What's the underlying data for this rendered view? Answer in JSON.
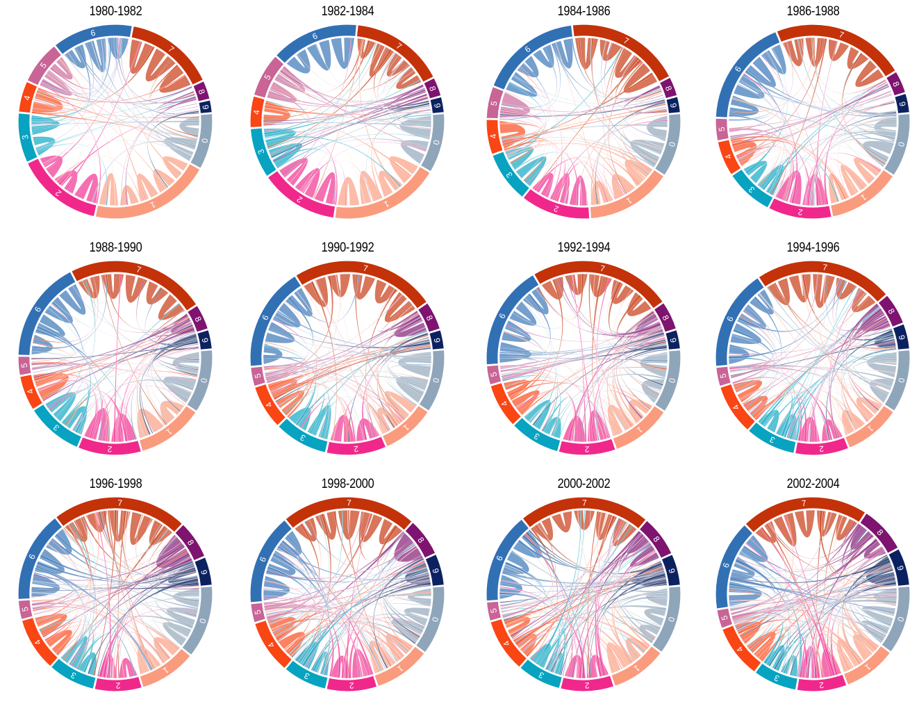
{
  "chart_data": {
    "type": "chord",
    "segment_labels": [
      "0",
      "1",
      "2",
      "3",
      "4",
      "5",
      "6",
      "7",
      "8",
      "9"
    ],
    "colors": {
      "0": "#8FA5BA",
      "1": "#FA9B7E",
      "2": "#F0288C",
      "3": "#07A3C1",
      "4": "#FA4514",
      "5": "#C86496",
      "6": "#3270B4",
      "7": "#C4320A",
      "8": "#7E1370",
      "9": "#0C2260"
    },
    "charts": [
      {
        "title": "1980-1982",
        "sizes": [
          9.0,
          19.5,
          14.0,
          8.0,
          5.0,
          7.0,
          13.0,
          14.5,
          3.0,
          2.0
        ]
      },
      {
        "title": "1982-1984",
        "sizes": [
          9.5,
          17.5,
          12.5,
          8.0,
          5.0,
          7.0,
          14.0,
          15.0,
          3.0,
          2.5
        ]
      },
      {
        "title": "1984-1986",
        "sizes": [
          10.0,
          13.5,
          11.0,
          8.0,
          5.5,
          5.0,
          16.0,
          18.0,
          3.0,
          2.5
        ]
      },
      {
        "title": "1986-1988",
        "sizes": [
          10.0,
          11.5,
          10.0,
          7.5,
          5.5,
          3.5,
          17.0,
          21.0,
          3.5,
          3.0
        ]
      },
      {
        "title": "1988-1990",
        "sizes": [
          10.0,
          10.5,
          10.0,
          9.0,
          5.5,
          3.0,
          16.0,
          22.0,
          4.0,
          3.0
        ]
      },
      {
        "title": "1990-1992",
        "sizes": [
          10.0,
          8.5,
          9.5,
          8.5,
          7.0,
          3.0,
          16.5,
          23.0,
          4.5,
          3.0
        ]
      },
      {
        "title": "1992-1994",
        "sizes": [
          10.0,
          9.5,
          9.0,
          8.0,
          7.0,
          3.0,
          16.5,
          22.5,
          4.5,
          3.0
        ]
      },
      {
        "title": "1994-1996",
        "sizes": [
          10.0,
          9.0,
          8.5,
          8.0,
          8.0,
          3.0,
          16.0,
          22.0,
          5.0,
          4.0
        ]
      },
      {
        "title": "1996-1998",
        "sizes": [
          11.5,
          9.0,
          7.5,
          7.5,
          8.5,
          3.0,
          14.5,
          21.5,
          6.0,
          4.5
        ]
      },
      {
        "title": "1998-2000",
        "sizes": [
          11.0,
          9.0,
          8.0,
          7.0,
          8.5,
          3.0,
          14.5,
          21.5,
          6.0,
          5.0
        ]
      },
      {
        "title": "2000-2002",
        "sizes": [
          11.0,
          9.0,
          8.5,
          7.0,
          8.5,
          3.0,
          14.5,
          21.0,
          6.5,
          5.0
        ]
      },
      {
        "title": "2002-2004",
        "sizes": [
          11.0,
          8.5,
          8.0,
          7.0,
          8.5,
          3.0,
          14.5,
          20.5,
          7.5,
          6.0
        ]
      }
    ]
  }
}
